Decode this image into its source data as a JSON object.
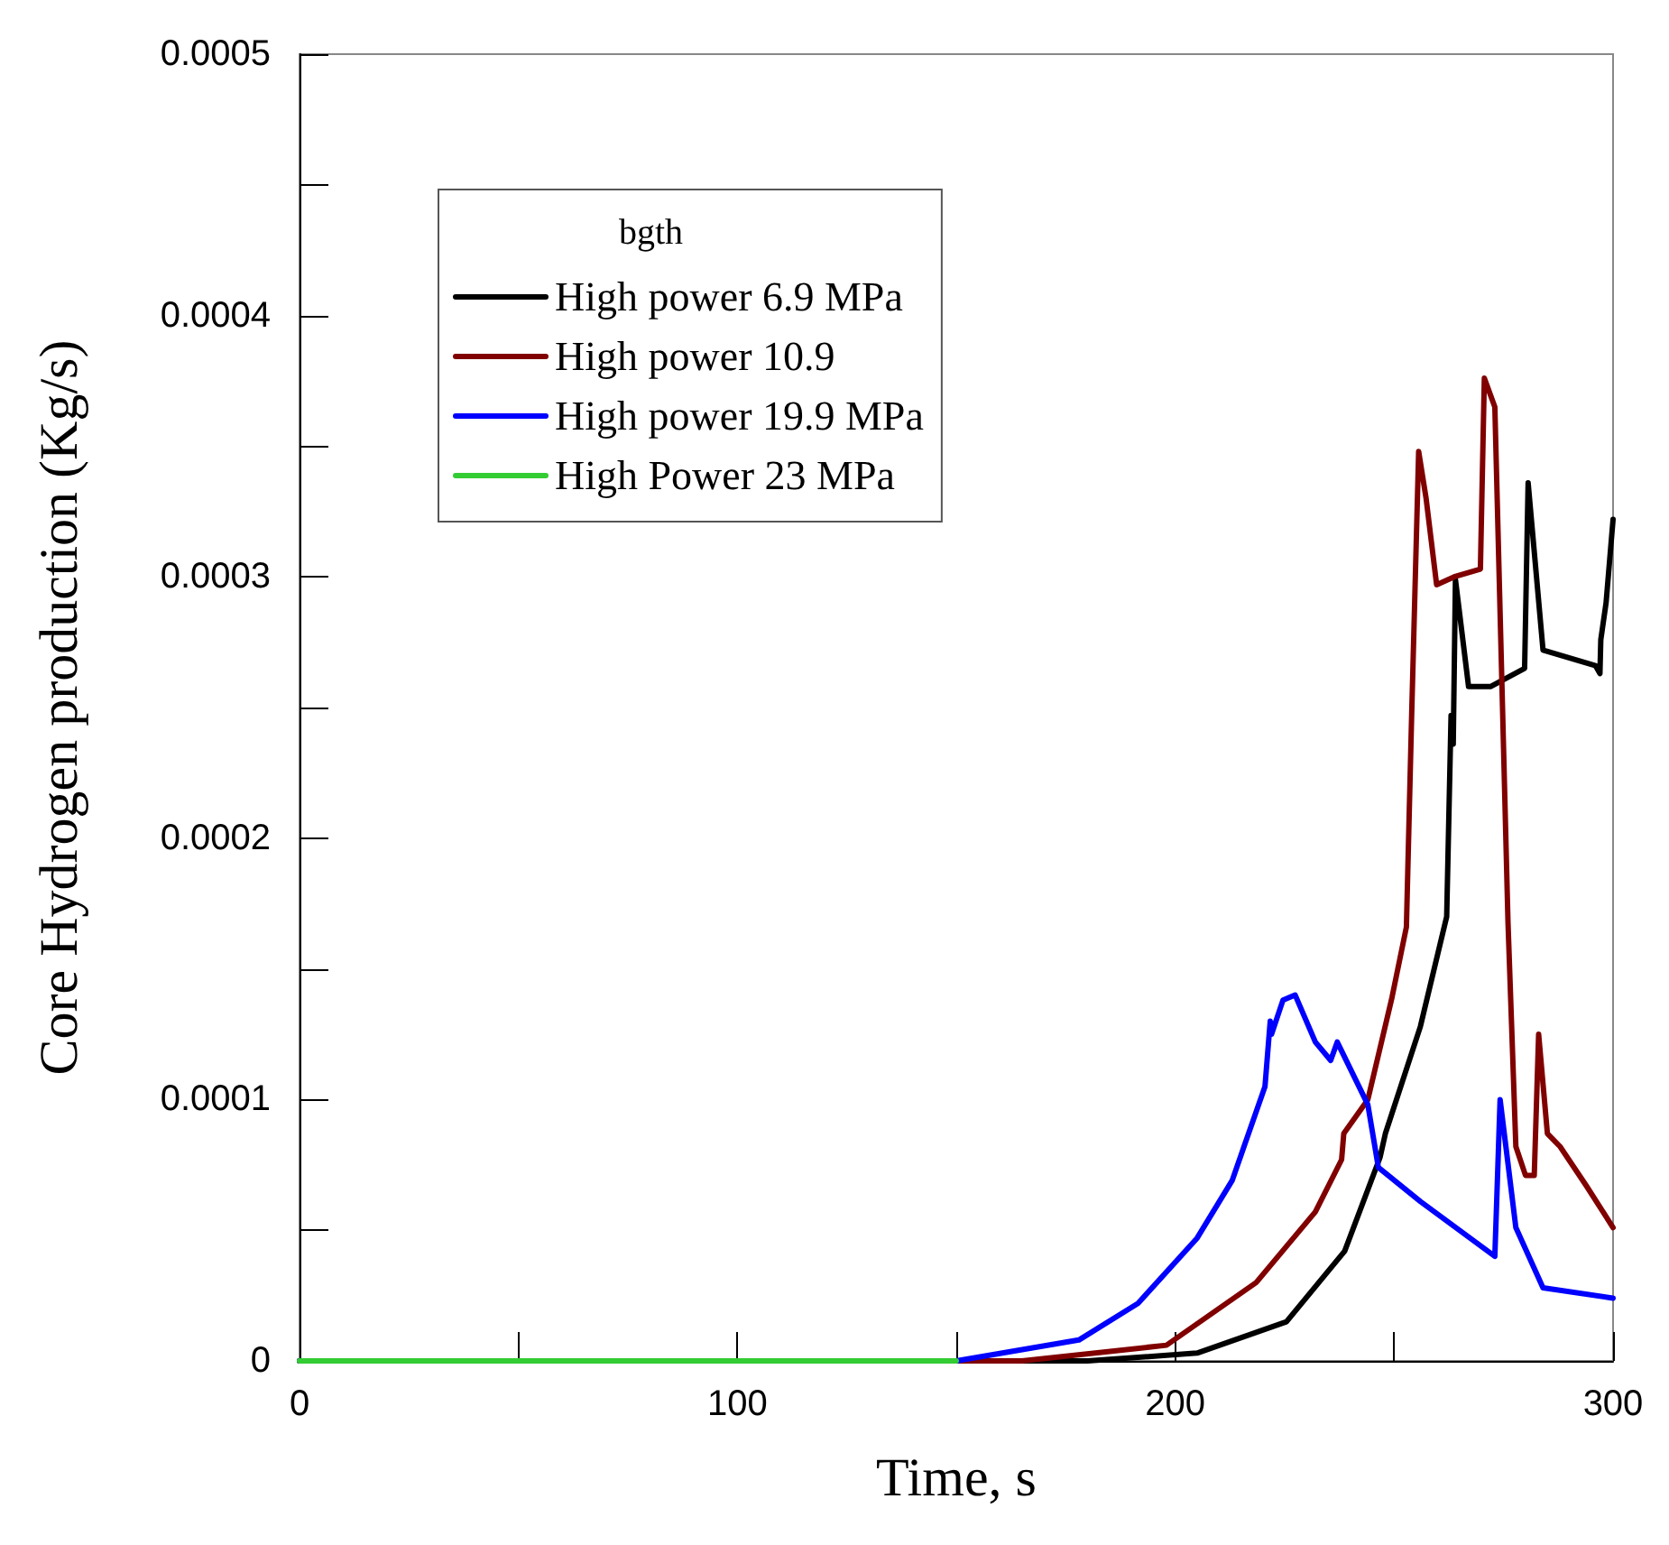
{
  "chart_data": {
    "type": "line",
    "xlabel": "Time, s",
    "ylabel": "Core Hydrogen production (Kg/s)",
    "legend_title": "bgth",
    "legend": "top",
    "line_style": "solid",
    "xlim": [
      0,
      300
    ],
    "xticks": [
      0,
      {
        "value": 50,
        "label": null
      },
      100,
      {
        "value": 150,
        "label": null
      },
      200,
      {
        "value": 250,
        "label": null
      },
      300
    ],
    "ylim": [
      0,
      0.0005
    ],
    "yticks": [
      0,
      {
        "value": 5e-05,
        "label": null
      },
      0.0001,
      {
        "value": 0.00015,
        "label": null
      },
      0.0002,
      {
        "value": 0.00025,
        "label": null
      },
      0.0003,
      {
        "value": 0.00035,
        "label": null
      },
      0.0004,
      {
        "value": 0.00045,
        "label": null
      },
      0.0005
    ],
    "series": [
      {
        "name": "High power 6.9 MPa",
        "color": "#000000",
        "x": [
          0,
          180,
          205,
          225.4,
          238.7,
          246.8,
          248,
          256,
          262,
          263,
          263.5,
          264,
          267,
          272,
          279.8,
          280.6,
          284,
          296,
          297,
          297.2,
          298.4,
          300
        ],
        "values": [
          0,
          0,
          3e-06,
          1.5e-05,
          4.2e-05,
          7.8e-05,
          8.7e-05,
          0.000128,
          0.00017,
          0.000247,
          0.000236,
          0.000299,
          0.000258,
          0.000258,
          0.000265,
          0.000336,
          0.000272,
          0.000266,
          0.000263,
          0.000276,
          0.00029,
          0.000322
        ]
      },
      {
        "name": "High power 10.9",
        "color": "#800000",
        "x": [
          0,
          165,
          198,
          218.5,
          232,
          238,
          238.5,
          244,
          249.5,
          252.8,
          254,
          255.6,
          257.3,
          259.7,
          263.7,
          269.7,
          270.6,
          273,
          276,
          277.8,
          280,
          282,
          283,
          285,
          287.9,
          293.9,
          300
        ],
        "values": [
          0,
          0,
          6e-06,
          3e-05,
          5.7e-05,
          7.7e-05,
          8.7e-05,
          0.0001,
          0.000139,
          0.000166,
          0.000247,
          0.000348,
          0.00033,
          0.000297,
          0.0003,
          0.000303,
          0.000376,
          0.000365,
          0.000168,
          8.2e-05,
          7.1e-05,
          7.1e-05,
          0.000125,
          8.7e-05,
          8.2e-05,
          6.7e-05,
          5.1e-05
        ]
      },
      {
        "name": "High power 19.9 MPa",
        "color": "#0000ff",
        "x": [
          0,
          150,
          178,
          191.5,
          205,
          213,
          220.5,
          221.7,
          222,
          224.6,
          227.4,
          232,
          235.5,
          237,
          244,
          246.4,
          256,
          273,
          274.2,
          277.8,
          284,
          300
        ],
        "values": [
          0,
          0,
          8e-06,
          2.2e-05,
          4.7e-05,
          6.9e-05,
          0.000105,
          0.00013,
          0.000125,
          0.000138,
          0.00014,
          0.000122,
          0.000115,
          0.000122,
          9.8e-05,
          7.4e-05,
          6.1e-05,
          4e-05,
          0.0001,
          5.1e-05,
          2.8e-05,
          2.4e-05
        ]
      },
      {
        "name": "High Power 23 MPa",
        "color": "#33cc33",
        "x": [
          0,
          150
        ],
        "values": [
          0,
          0
        ]
      }
    ]
  }
}
